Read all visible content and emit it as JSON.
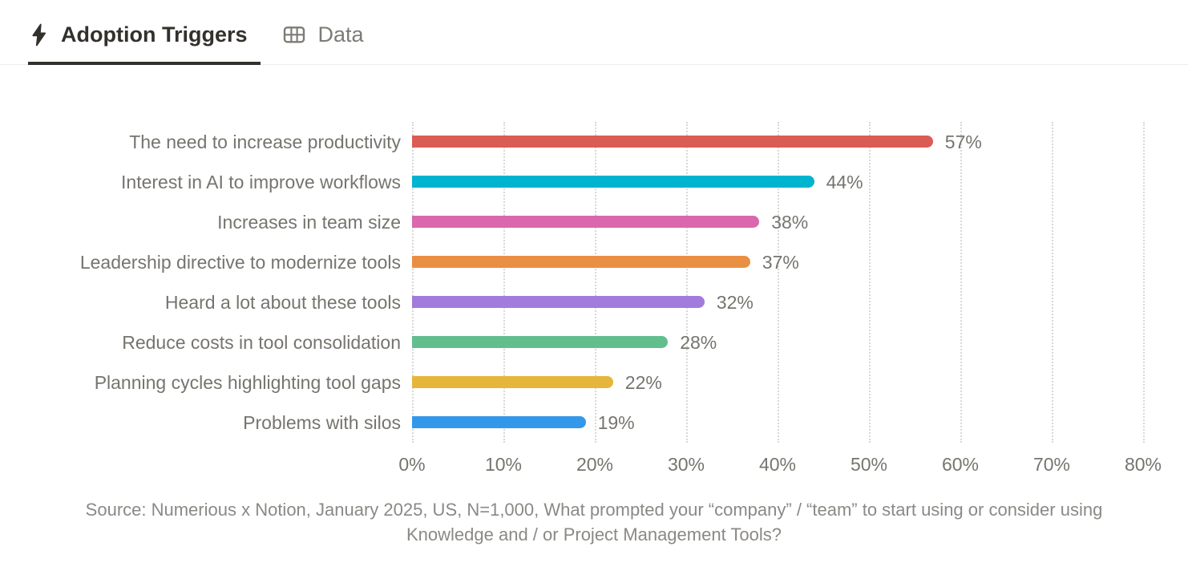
{
  "tabs": [
    {
      "label": "Adoption Triggers",
      "icon": "lightning-icon",
      "active": true
    },
    {
      "label": "Data",
      "icon": "table-icon",
      "active": false
    }
  ],
  "chart_data": {
    "type": "bar",
    "orientation": "horizontal",
    "title": "Adoption Triggers",
    "categories": [
      "The need to increase productivity",
      "Interest in AI to improve workflows",
      "Increases in team size",
      "Leadership directive to modernize tools",
      "Heard a lot about these tools",
      "Reduce costs in tool consolidation",
      "Planning cycles highlighting tool gaps",
      "Problems with silos"
    ],
    "values": [
      57,
      44,
      38,
      37,
      32,
      28,
      22,
      19
    ],
    "colors": [
      "#db5c55",
      "#00b4d0",
      "#da68ae",
      "#e98f44",
      "#a27cdc",
      "#63be8e",
      "#e5b63b",
      "#3498ea"
    ],
    "xlim": [
      0,
      80
    ],
    "xticks": [
      0,
      10,
      20,
      30,
      40,
      50,
      60,
      70,
      80
    ],
    "xtick_suffix": "%",
    "value_suffix": "%",
    "grid": "dotted-vertical",
    "label_color": "#76746e"
  },
  "source": "Source: Numerious x Notion, January 2025, US, N=1,000, What prompted your “company” / “team” to start using or consider using Knowledge and / or Project Management Tools?"
}
